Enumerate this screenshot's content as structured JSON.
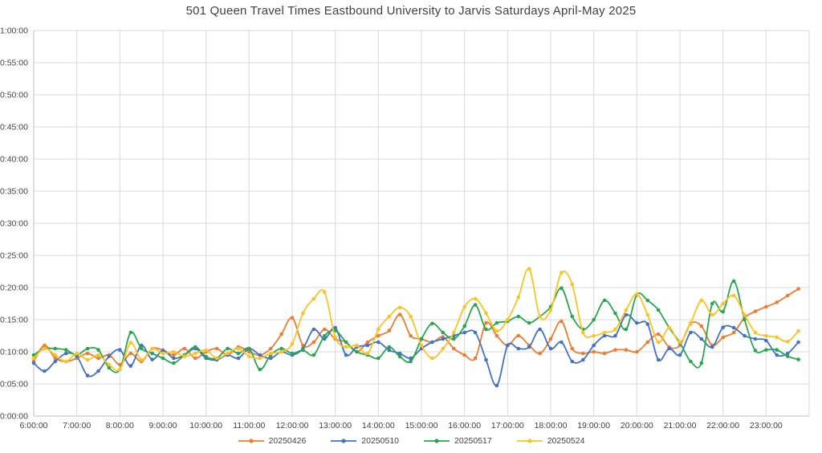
{
  "title": "501 Queen Travel Times Eastbound University to Jarvis Saturdays April-May 2025",
  "colors": {
    "background": "#FFFFFF",
    "grid": "#D9D9D9",
    "axis": "#BFBFBF",
    "text": "#404040"
  },
  "chart_data": {
    "type": "line",
    "title": "501 Queen Travel Times Eastbound University to Jarvis Saturdays April-May 2025",
    "x_unit": "time of day (decimal hours)",
    "y_unit": "travel time (minutes, axis shown as h:mm:ss)",
    "xlim": [
      6,
      24
    ],
    "ylim": [
      0,
      60
    ],
    "grid": true,
    "legend_position": "bottom",
    "marker": "circle",
    "y_ticks": {
      "step_minutes": 5,
      "labels": [
        "1:00:00",
        "0:55:00",
        "0:50:00",
        "0:45:00",
        "0:40:00",
        "0:35:00",
        "0:30:00",
        "0:25:00",
        "0:20:00",
        "0:15:00",
        "0:10:00",
        "0:05:00",
        "0:00:00"
      ]
    },
    "x_ticks": {
      "hours": [
        6,
        7,
        8,
        9,
        10,
        11,
        12,
        13,
        14,
        15,
        16,
        17,
        18,
        19,
        20,
        21,
        22,
        23
      ],
      "labels": [
        "6:00:00",
        "7:00:00",
        "8:00:00",
        "9:00:00",
        "10:00:00",
        "11:00:00",
        "12:00:00",
        "13:00:00",
        "14:00:00",
        "15:00:00",
        "16:00:00",
        "17:00:00",
        "18:00:00",
        "19:00:00",
        "20:00:00",
        "21:00:00",
        "22:00:00",
        "23:00:00"
      ]
    },
    "x_hours": [
      6,
      6.25,
      6.5,
      6.75,
      7,
      7.25,
      7.5,
      7.75,
      8,
      8.25,
      8.5,
      8.75,
      9,
      9.25,
      9.5,
      9.75,
      10,
      10.25,
      10.5,
      10.75,
      11,
      11.25,
      11.5,
      11.75,
      12,
      12.25,
      12.5,
      12.75,
      13,
      13.25,
      13.5,
      13.75,
      14,
      14.25,
      14.5,
      14.75,
      15,
      15.25,
      15.5,
      15.75,
      16,
      16.25,
      16.5,
      16.75,
      17,
      17.25,
      17.5,
      17.75,
      18,
      18.25,
      18.5,
      18.75,
      19,
      19.25,
      19.5,
      19.75,
      20,
      20.25,
      20.5,
      20.75,
      21,
      21.25,
      21.5,
      21.75,
      22,
      22.25,
      22.5,
      22.75,
      23,
      23.25,
      23.5,
      23.75
    ],
    "series": [
      {
        "name": "20250426",
        "color": "#ED7D31",
        "values": [
          8.5,
          11,
          9,
          8.5,
          9,
          9.75,
          9,
          9.5,
          8,
          9.75,
          8.5,
          10.5,
          10.25,
          9.5,
          10.5,
          9,
          10,
          10.5,
          9.5,
          10.75,
          10,
          9.5,
          10.5,
          12.75,
          15.3,
          11,
          11.5,
          13.5,
          12,
          11.5,
          10,
          11.5,
          12.5,
          13.3,
          15.8,
          12.5,
          12,
          11.5,
          12.3,
          10.5,
          9.5,
          9,
          14.5,
          12.5,
          11,
          12.5,
          11,
          9.75,
          12,
          14.75,
          10.5,
          9.75,
          10,
          9.75,
          10.3,
          10.3,
          10,
          11.5,
          12.75,
          10.75,
          11,
          14.4,
          14,
          11,
          12.25,
          13,
          15.3,
          16.3,
          17,
          17.7,
          18.75,
          19.8
        ]
      },
      {
        "name": "20250510",
        "color": "#4472C4",
        "values": [
          8.25,
          7,
          8.5,
          9.75,
          9.3,
          6.3,
          7,
          9.3,
          10.3,
          7.8,
          11,
          8.8,
          10.2,
          9,
          9.5,
          10.5,
          9,
          8.75,
          9.5,
          9,
          10.5,
          9.5,
          9,
          10,
          9.5,
          10.5,
          13.5,
          12,
          13.75,
          9.5,
          10.75,
          11,
          11.5,
          10.25,
          9.75,
          9,
          10.5,
          11.5,
          12,
          12.5,
          13,
          13,
          8.75,
          4.75,
          11,
          10.5,
          10.75,
          13.5,
          10.5,
          11.5,
          8.5,
          8.75,
          11,
          12.5,
          12.5,
          15.75,
          14.5,
          14.3,
          8.75,
          10.5,
          9.5,
          13,
          12,
          10.75,
          13.8,
          13.75,
          12.5,
          12,
          11.75,
          9.5,
          9.75,
          11.5
        ]
      },
      {
        "name": "20250517",
        "color": "#28A750",
        "values": [
          9.5,
          10.5,
          10.5,
          10.3,
          9.5,
          10.5,
          10.3,
          7.5,
          7.25,
          13,
          10.5,
          9.75,
          9,
          8.25,
          9.5,
          10.75,
          9.25,
          9,
          10.5,
          9.75,
          10.5,
          7.25,
          9.5,
          10.5,
          9.75,
          10.25,
          9.5,
          12.5,
          13.3,
          11.5,
          10,
          9.5,
          9,
          10.75,
          9.25,
          8.5,
          12,
          14.4,
          13,
          12,
          14,
          17.3,
          13.5,
          14.5,
          14.75,
          15.5,
          14.5,
          15.5,
          17,
          19.9,
          15.5,
          13.5,
          15,
          18,
          16,
          13.5,
          18.9,
          18,
          16.5,
          13.75,
          11.4,
          8.5,
          8.25,
          17.5,
          16.25,
          21,
          15,
          10.2,
          10.3,
          10.3,
          9.3,
          8.8
        ]
      },
      {
        "name": "20250524",
        "color": "#FDC323",
        "values": [
          9,
          10.5,
          9.5,
          8.5,
          9.75,
          8.75,
          9.5,
          8,
          7.25,
          11.4,
          8.75,
          10.5,
          9.75,
          10,
          9.3,
          9.75,
          10.25,
          9,
          9.75,
          10.5,
          9.3,
          9,
          9.75,
          10,
          11.25,
          16,
          18.25,
          19.3,
          12.25,
          10.75,
          11,
          9.75,
          13.5,
          15.5,
          16.9,
          15.5,
          11,
          9,
          10.5,
          13,
          17,
          18.25,
          16,
          13.25,
          15,
          18.5,
          22.9,
          15.5,
          16.5,
          22.3,
          20.5,
          13,
          12.5,
          13,
          13.5,
          16.5,
          19,
          15.75,
          11.5,
          13.75,
          11.5,
          14.5,
          18,
          15.75,
          17.5,
          18.75,
          15.75,
          13,
          12.5,
          12.25,
          11.6,
          13.25
        ]
      }
    ]
  }
}
